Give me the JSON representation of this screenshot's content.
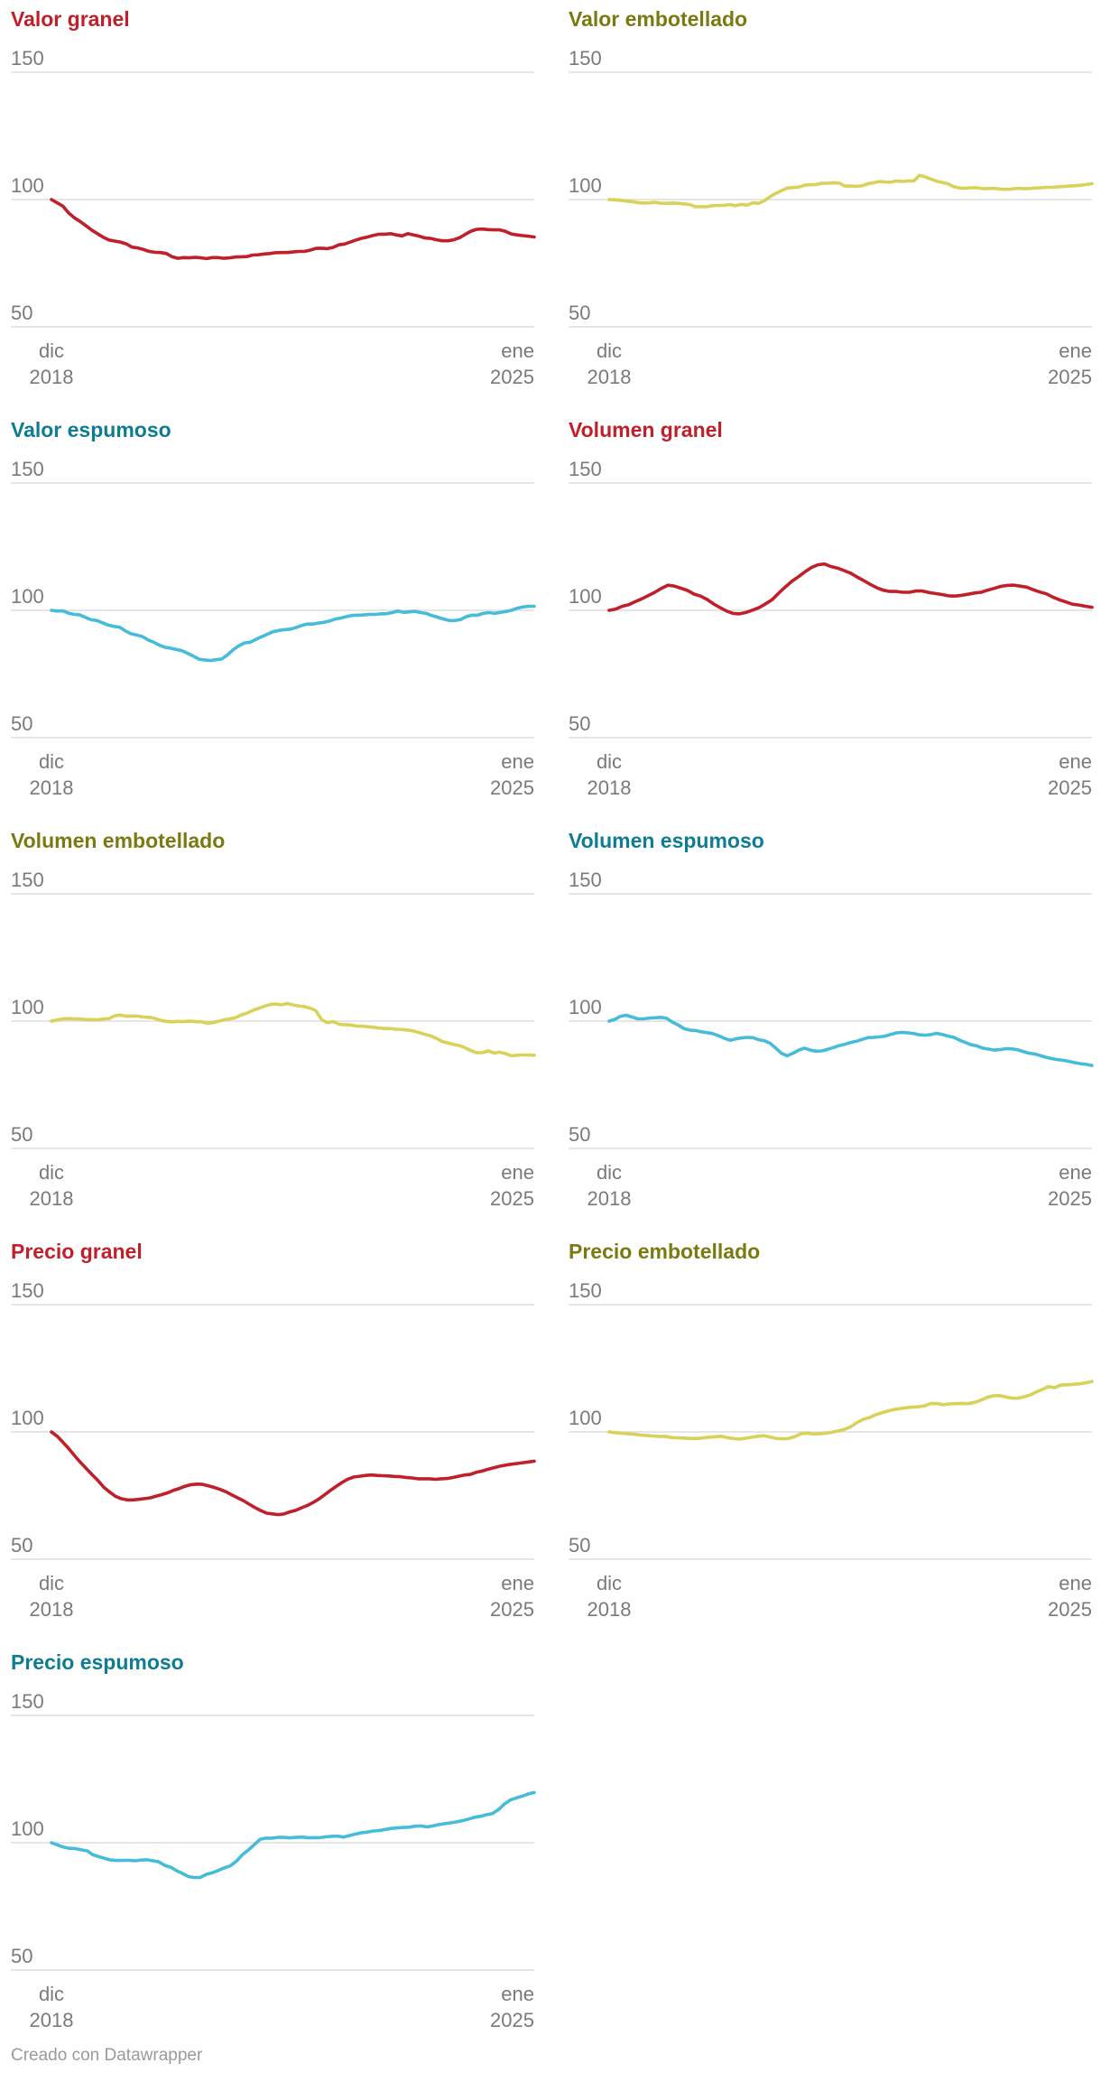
{
  "footer": "Creado con Datawrapper",
  "colors": {
    "red": "#c0202a",
    "olive": "#7a7a10",
    "lineYellow": "#d8d25a",
    "teal": "#0e7d93",
    "lineBlue": "#47bcd9",
    "grid": "#dddddd"
  },
  "chart_data": [
    {
      "type": "line",
      "title": "Valor granel",
      "titleColor": "#c0202a",
      "lineColor": "#c0202a",
      "ylim": [
        50,
        150
      ],
      "yticks": [
        150,
        100,
        50
      ],
      "xticks": [
        [
          "dic",
          "2018"
        ],
        [
          "ene",
          "2025"
        ]
      ],
      "values": [
        100,
        98.7,
        97.4,
        94.7,
        92.8,
        91.4,
        89.7,
        88,
        86.6,
        85.2,
        84.1,
        83.7,
        83.3,
        82.6,
        81.3,
        81,
        80.4,
        79.6,
        79.3,
        79.2,
        78.8,
        77.5,
        76.9,
        77.2,
        77.1,
        77.3,
        77.1,
        76.8,
        77.2,
        77.2,
        76.9,
        77.1,
        77.4,
        77.5,
        77.6,
        78.2,
        78.3,
        78.6,
        78.8,
        79.1,
        79.2,
        79.2,
        79.4,
        79.6,
        79.6,
        80.1,
        80.8,
        80.9,
        80.7,
        81.2,
        82.2,
        82.5,
        83.3,
        84.1,
        84.8,
        85.3,
        85.9,
        86.4,
        86.4,
        86.6,
        86.1,
        85.7,
        86.6,
        86.1,
        85.6,
        84.9,
        84.7,
        84.2,
        83.8,
        83.8,
        84.2,
        85,
        86.3,
        87.6,
        88.3,
        88.4,
        88.2,
        88.1,
        88.1,
        87.5,
        86.5,
        86.1,
        85.8,
        85.6,
        85.3
      ]
    },
    {
      "type": "line",
      "title": "Valor embotellado",
      "titleColor": "#7a7a10",
      "lineColor": "#d8d25a",
      "ylim": [
        50,
        150
      ],
      "yticks": [
        150,
        100,
        50
      ],
      "xticks": [
        [
          "dic",
          "2018"
        ],
        [
          "ene",
          "2025"
        ]
      ],
      "values": [
        100,
        99.9,
        99.7,
        99.4,
        99.2,
        98.8,
        98.6,
        98.7,
        98.9,
        98.5,
        98.5,
        98.6,
        98.5,
        98.3,
        98,
        97.2,
        97.2,
        97.2,
        97.6,
        97.7,
        97.7,
        98,
        97.6,
        98.1,
        97.8,
        98.7,
        98.5,
        99.5,
        101.1,
        102.4,
        103.5,
        104.5,
        104.7,
        104.9,
        105.6,
        105.8,
        105.9,
        106.4,
        106.4,
        106.6,
        106.5,
        105.3,
        105.3,
        105.2,
        105.4,
        106.2,
        106.6,
        107.1,
        106.9,
        106.8,
        107.3,
        107.1,
        107.3,
        107.3,
        109.5,
        108.9,
        108,
        107.2,
        106.7,
        106.1,
        105,
        104.5,
        104.4,
        104.6,
        104.6,
        104.3,
        104.3,
        104.4,
        104.1,
        104,
        104.1,
        104.4,
        104.3,
        104.3,
        104.5,
        104.6,
        104.8,
        104.8,
        105,
        105.1,
        105.3,
        105.4,
        105.6,
        105.9,
        106.2
      ]
    },
    {
      "type": "line",
      "title": "Valor espumoso",
      "titleColor": "#0e7d93",
      "lineColor": "#47bcd9",
      "ylim": [
        50,
        150
      ],
      "yticks": [
        150,
        100,
        50
      ],
      "xticks": [
        [
          "dic",
          "2018"
        ],
        [
          "ene",
          "2025"
        ]
      ],
      "values": [
        100,
        99.7,
        99.8,
        98.9,
        98.4,
        98.2,
        97.2,
        96.3,
        96,
        95.1,
        94.2,
        93.7,
        93.4,
        91.9,
        90.8,
        90.3,
        89.7,
        88.4,
        87.5,
        86.3,
        85.5,
        85.1,
        84.6,
        84.1,
        83.1,
        82,
        80.8,
        80.5,
        80.3,
        80.6,
        80.9,
        82.5,
        84.5,
        86.1,
        87.2,
        87.5,
        88.6,
        89.6,
        90.6,
        91.6,
        92.1,
        92.4,
        92.6,
        93.2,
        94,
        94.6,
        94.6,
        95,
        95.3,
        95.8,
        96.6,
        97,
        97.6,
        98,
        98.1,
        98.2,
        98.4,
        98.4,
        98.6,
        98.7,
        99.1,
        99.7,
        99.2,
        99.4,
        99.6,
        99.1,
        98.8,
        97.9,
        97.3,
        96.6,
        96,
        96,
        96.4,
        97.5,
        98.1,
        98.1,
        98.8,
        99.1,
        98.8,
        99.2,
        99.5,
        100,
        100.8,
        101.3,
        101.6,
        101.6
      ]
    },
    {
      "type": "line",
      "title": "Volumen granel",
      "titleColor": "#c0202a",
      "lineColor": "#c0202a",
      "ylim": [
        50,
        150
      ],
      "yticks": [
        150,
        100,
        50
      ],
      "xticks": [
        [
          "dic",
          "2018"
        ],
        [
          "ene",
          "2025"
        ]
      ],
      "values": [
        100,
        100.5,
        101.6,
        102.2,
        103.4,
        104.5,
        105.8,
        107.1,
        108.6,
        109.9,
        109.5,
        108.7,
        107.8,
        106.4,
        105.6,
        104.3,
        102.5,
        101.1,
        99.7,
        98.8,
        98.6,
        99.2,
        100.1,
        101.1,
        102.6,
        104.2,
        106.8,
        109.2,
        111.4,
        113.2,
        115.1,
        116.8,
        117.9,
        118.2,
        117.2,
        116.6,
        115.6,
        114.6,
        113.1,
        111.7,
        110.2,
        108.9,
        107.9,
        107.4,
        107.4,
        107.1,
        107.1,
        107.6,
        107.6,
        107,
        106.6,
        106.2,
        105.7,
        105.6,
        105.9,
        106.3,
        106.8,
        107.1,
        107.9,
        108.6,
        109.4,
        109.8,
        109.9,
        109.5,
        109.1,
        108.1,
        107.2,
        106.5,
        105.2,
        104.1,
        103.3,
        102.4,
        102.1,
        101.6,
        101.2
      ]
    },
    {
      "type": "line",
      "title": "Volumen embotellado",
      "titleColor": "#7a7a10",
      "lineColor": "#d8d25a",
      "ylim": [
        50,
        150
      ],
      "yticks": [
        150,
        100,
        50
      ],
      "xticks": [
        [
          "dic",
          "2018"
        ],
        [
          "ene",
          "2025"
        ]
      ],
      "values": [
        100,
        100.5,
        100.9,
        101,
        100.9,
        100.8,
        100.6,
        100.6,
        100.5,
        100.8,
        101,
        102.1,
        102.4,
        101.9,
        102,
        102,
        101.6,
        101.5,
        101.1,
        100.3,
        99.9,
        99.7,
        99.9,
        99.8,
        100,
        99.8,
        99.8,
        99.2,
        99.4,
        99.9,
        100.5,
        100.9,
        101.3,
        102.4,
        103.1,
        104.2,
        105,
        105.8,
        106.5,
        106.7,
        106.4,
        106.9,
        106.4,
        106,
        105.7,
        105.1,
        104.1,
        100.6,
        99.4,
        99.8,
        98.8,
        98.6,
        98.5,
        98.1,
        98,
        97.8,
        97.6,
        97.3,
        97.1,
        97.1,
        96.8,
        96.7,
        96.5,
        96.1,
        95.5,
        94.8,
        94.2,
        93.2,
        92,
        91.4,
        90.8,
        90.4,
        89.5,
        88.4,
        87.6,
        87.6,
        88.3,
        87.5,
        87.8,
        87.2,
        86.4,
        86.6,
        86.7,
        86.7,
        86.6
      ]
    },
    {
      "type": "line",
      "title": "Volumen espumoso",
      "titleColor": "#0e7d93",
      "lineColor": "#47bcd9",
      "ylim": [
        50,
        150
      ],
      "yticks": [
        150,
        100,
        50
      ],
      "xticks": [
        [
          "dic",
          "2018"
        ],
        [
          "ene",
          "2025"
        ]
      ],
      "values": [
        100,
        100.7,
        101.9,
        102.3,
        101.6,
        100.9,
        100.9,
        101.2,
        101.3,
        101.5,
        101.1,
        99.6,
        98.5,
        97.1,
        96.5,
        96.3,
        95.8,
        95.5,
        95.1,
        94.3,
        93.3,
        92.5,
        93,
        93.4,
        93.6,
        93.5,
        92.7,
        92.3,
        91.3,
        89.4,
        87.3,
        86.4,
        87.4,
        88.6,
        89.4,
        88.6,
        88.2,
        88.3,
        88.9,
        89.6,
        90.4,
        90.9,
        91.6,
        92.1,
        92.8,
        93.5,
        93.6,
        93.8,
        94.1,
        94.8,
        95.4,
        95.6,
        95.4,
        95.1,
        94.6,
        94.5,
        94.7,
        95.2,
        94.7,
        94.1,
        93.6,
        92.5,
        91.6,
        90.7,
        90.3,
        89.4,
        89,
        88.6,
        88.8,
        89.2,
        89.1,
        88.8,
        88.1,
        87.4,
        87.1,
        86.5,
        85.8,
        85.3,
        84.9,
        84.6,
        84.2,
        83.7,
        83.3,
        83,
        82.6
      ]
    },
    {
      "type": "line",
      "title": "Precio granel",
      "titleColor": "#c0202a",
      "lineColor": "#c0202a",
      "ylim": [
        50,
        150
      ],
      "yticks": [
        150,
        100,
        50
      ],
      "xticks": [
        [
          "dic",
          "2018"
        ],
        [
          "ene",
          "2025"
        ]
      ],
      "values": [
        100,
        98.3,
        95.9,
        93.4,
        90.6,
        88,
        85.6,
        83.2,
        80.9,
        78.3,
        76.4,
        74.7,
        73.8,
        73.3,
        73.3,
        73.5,
        73.8,
        74.1,
        74.8,
        75.4,
        76.1,
        77.1,
        77.8,
        78.7,
        79.3,
        79.5,
        79.4,
        78.8,
        78.2,
        77.4,
        76.5,
        75.3,
        74.1,
        73,
        71.6,
        70.3,
        69.1,
        68.1,
        67.8,
        67.5,
        67.8,
        68.6,
        69.2,
        70.2,
        71.1,
        72.3,
        73.7,
        75.4,
        77.1,
        78.7,
        80.2,
        81.5,
        82.3,
        82.6,
        82.9,
        83.1,
        82.9,
        82.8,
        82.7,
        82.5,
        82.4,
        82.1,
        81.9,
        81.6,
        81.6,
        81.6,
        81.4,
        81.6,
        81.7,
        82.1,
        82.6,
        83.1,
        83.3,
        84.1,
        84.6,
        85.3,
        85.9,
        86.5,
        86.9,
        87.3,
        87.6,
        87.9,
        88.2,
        88.5
      ]
    },
    {
      "type": "line",
      "title": "Precio embotellado",
      "titleColor": "#7a7a10",
      "lineColor": "#d8d25a",
      "ylim": [
        50,
        150
      ],
      "yticks": [
        150,
        100,
        50
      ],
      "xticks": [
        [
          "dic",
          "2018"
        ],
        [
          "ene",
          "2025"
        ]
      ],
      "values": [
        100,
        99.7,
        99.5,
        99.3,
        99.1,
        98.8,
        98.6,
        98.4,
        98.2,
        98.3,
        97.8,
        97.7,
        97.6,
        97.5,
        97.4,
        97.6,
        97.9,
        98.1,
        98.3,
        97.8,
        97.4,
        97.2,
        97.5,
        97.9,
        98.3,
        98.5,
        98,
        97.4,
        97.3,
        97.4,
        98.2,
        99.3,
        99.5,
        99.2,
        99.3,
        99.5,
        99.9,
        100.4,
        101,
        102,
        103.6,
        104.9,
        105.6,
        106.7,
        107.5,
        108.2,
        108.8,
        109.2,
        109.5,
        109.7,
        109.9,
        110.3,
        111.2,
        111.1,
        110.7,
        111,
        111.1,
        111.2,
        111.1,
        111.6,
        112.4,
        113.5,
        114.2,
        114.3,
        113.8,
        113.3,
        113.2,
        113.8,
        114.5,
        115.7,
        116.7,
        117.8,
        117.4,
        118.4,
        118.5,
        118.7,
        118.9,
        119.3,
        119.8
      ]
    },
    {
      "type": "line",
      "title": "Precio espumoso",
      "titleColor": "#0e7d93",
      "lineColor": "#47bcd9",
      "ylim": [
        50,
        150
      ],
      "yticks": [
        150,
        100,
        50
      ],
      "xticks": [
        [
          "dic",
          "2018"
        ],
        [
          "ene",
          "2025"
        ]
      ],
      "values": [
        100,
        99.1,
        98.3,
        97.8,
        97.7,
        97.2,
        96.8,
        95.2,
        94.5,
        93.8,
        93.2,
        93,
        93.1,
        93.1,
        92.9,
        93.2,
        93.3,
        92.9,
        92.5,
        91.1,
        90.4,
        89,
        87.9,
        86.7,
        86.3,
        86.4,
        87.6,
        88.2,
        89.1,
        90.1,
        90.9,
        92.7,
        95.2,
        97.1,
        99.2,
        101.3,
        101.8,
        101.8,
        102.1,
        102.1,
        101.9,
        102.1,
        102.2,
        102,
        102,
        102,
        102.3,
        102.5,
        102.6,
        102.2,
        102.8,
        103.4,
        103.9,
        104.2,
        104.6,
        104.8,
        105.2,
        105.6,
        105.8,
        106,
        106.1,
        106.5,
        106.6,
        106.2,
        106.6,
        107.1,
        107.5,
        107.8,
        108.2,
        108.7,
        109.3,
        110,
        110.4,
        111,
        111.5,
        113,
        115.2,
        116.8,
        117.6,
        118.3,
        119.2,
        119.7
      ]
    }
  ]
}
